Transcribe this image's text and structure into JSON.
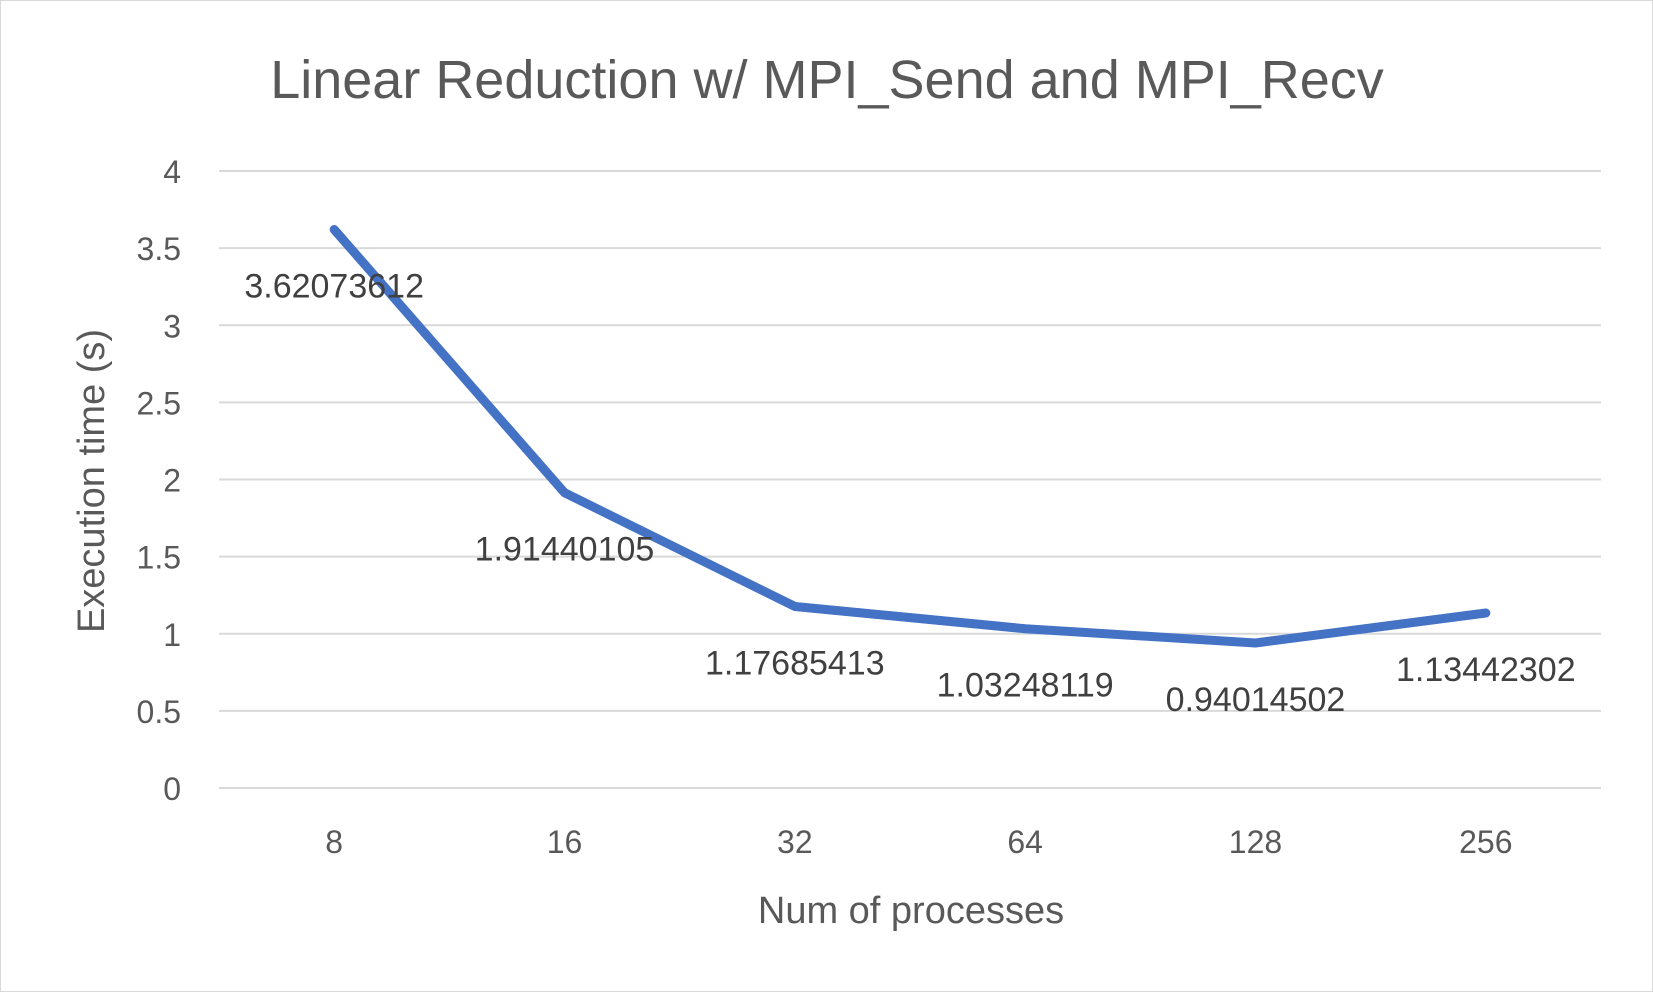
{
  "chart_data": {
    "type": "line",
    "title": "Linear Reduction w/ MPI_Send and MPI_Recv",
    "xlabel": "Num of processes",
    "ylabel": "Execution time (s)",
    "categories": [
      "8",
      "16",
      "32",
      "64",
      "128",
      "256"
    ],
    "series": [
      {
        "values": [
          3.62073612,
          1.91440105,
          1.17685413,
          1.03248119,
          0.94014502,
          1.13442302
        ]
      }
    ],
    "data_labels": [
      "3.62073612",
      "1.91440105",
      "1.17685413",
      "1.03248119",
      "0.94014502",
      "1.13442302"
    ],
    "y_ticks": [
      "0",
      "0.5",
      "1",
      "1.5",
      "2",
      "2.5",
      "3",
      "3.5",
      "4"
    ],
    "ylim": [
      0,
      4
    ],
    "grid": true,
    "legend": "none",
    "colors": {
      "line": "#4472c4",
      "grid": "#d9d9d9",
      "text": "#595959",
      "label_text": "#404040"
    }
  }
}
